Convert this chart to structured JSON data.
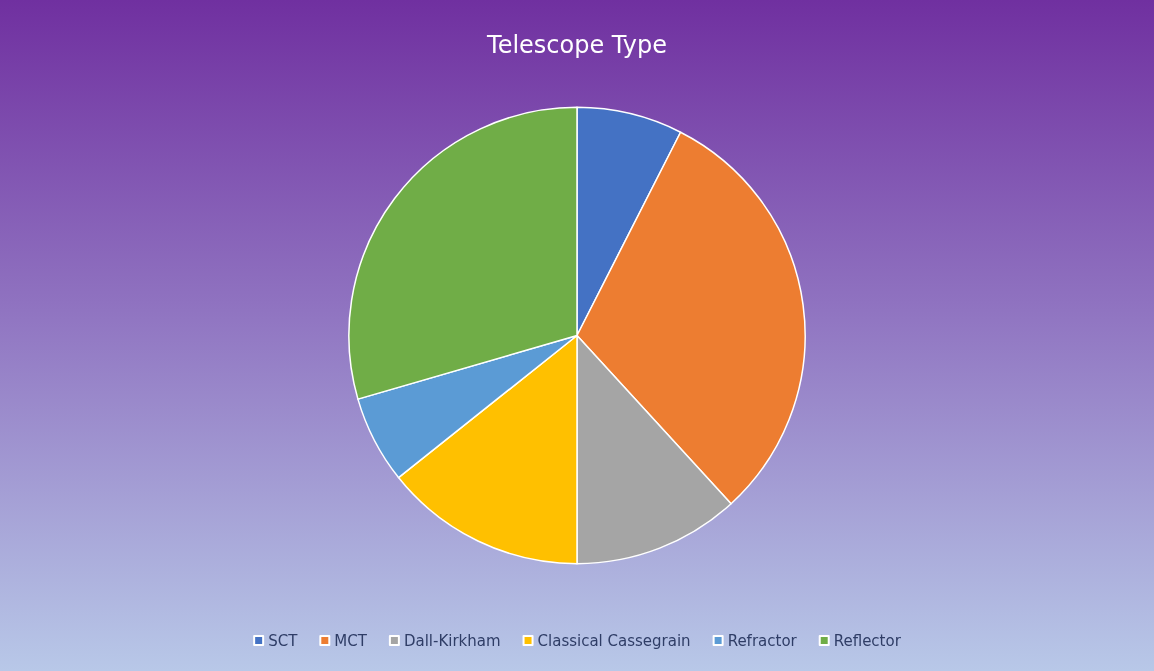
{
  "chart_data": {
    "type": "pie",
    "title": "Telescope Type",
    "categories": [
      "SCT",
      "MCT",
      "Dall-Kirkham",
      "Classical Cassegrain",
      "Refractor",
      "Reflector"
    ],
    "values": [
      7.5,
      30.7,
      11.8,
      14.3,
      6.2,
      29.5
    ],
    "colors": [
      "#4472c4",
      "#ed7d31",
      "#a5a5a5",
      "#ffc000",
      "#5b9bd5",
      "#70ad47"
    ],
    "legend": "bottom"
  }
}
